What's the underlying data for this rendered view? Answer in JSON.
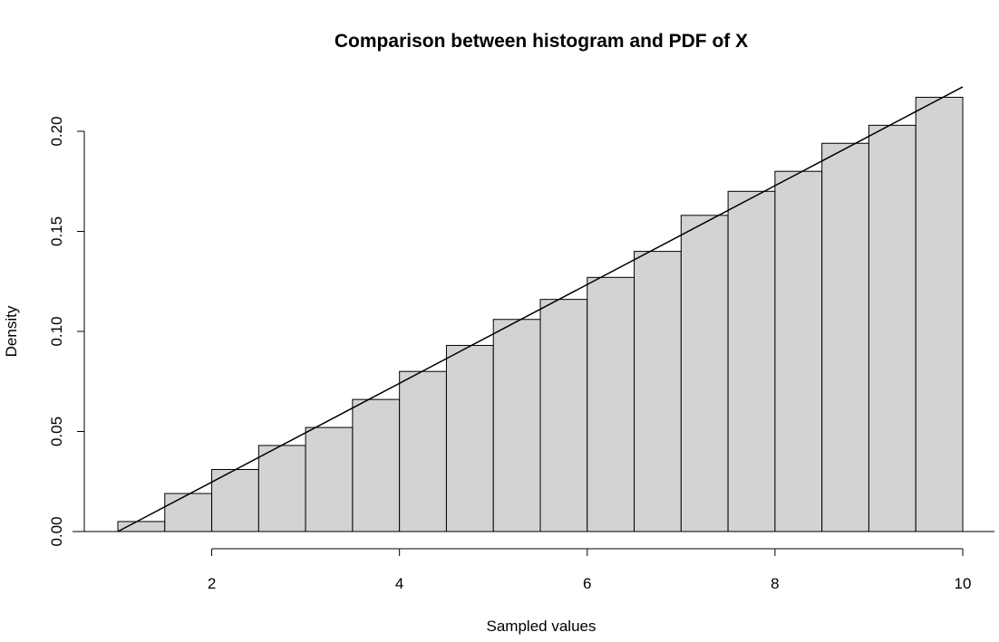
{
  "colors": {
    "bar_fill": "#d3d3d3",
    "bar_stroke": "#000000",
    "line": "#000000",
    "axis": "#000000",
    "background": "#ffffff"
  },
  "chart_data": {
    "type": "bar",
    "title": "Comparison between histogram and PDF of X",
    "xlabel": "Sampled values",
    "ylabel": "Density",
    "xlim": [
      1,
      10
    ],
    "ylim": [
      0,
      0.22
    ],
    "x_axis_ticks": [
      2,
      4,
      6,
      8,
      10
    ],
    "x_tick_labels": [
      "2",
      "4",
      "6",
      "8",
      "10"
    ],
    "y_axis_ticks": [
      0,
      0.05,
      0.1,
      0.15,
      0.2
    ],
    "y_tick_labels": [
      "0.00",
      "0.05",
      "0.10",
      "0.15",
      "0.20"
    ],
    "grid": false,
    "bins": [
      {
        "start": 1.0,
        "end": 1.5,
        "density": 0.005
      },
      {
        "start": 1.5,
        "end": 2.0,
        "density": 0.019
      },
      {
        "start": 2.0,
        "end": 2.5,
        "density": 0.031
      },
      {
        "start": 2.5,
        "end": 3.0,
        "density": 0.043
      },
      {
        "start": 3.0,
        "end": 3.5,
        "density": 0.052
      },
      {
        "start": 3.5,
        "end": 4.0,
        "density": 0.066
      },
      {
        "start": 4.0,
        "end": 4.5,
        "density": 0.08
      },
      {
        "start": 4.5,
        "end": 5.0,
        "density": 0.093
      },
      {
        "start": 5.0,
        "end": 5.5,
        "density": 0.106
      },
      {
        "start": 5.5,
        "end": 6.0,
        "density": 0.116
      },
      {
        "start": 6.0,
        "end": 6.5,
        "density": 0.127
      },
      {
        "start": 6.5,
        "end": 7.0,
        "density": 0.14
      },
      {
        "start": 7.0,
        "end": 7.5,
        "density": 0.158
      },
      {
        "start": 7.5,
        "end": 8.0,
        "density": 0.17
      },
      {
        "start": 8.0,
        "end": 8.5,
        "density": 0.18
      },
      {
        "start": 8.5,
        "end": 9.0,
        "density": 0.194
      },
      {
        "start": 9.0,
        "end": 9.5,
        "density": 0.203
      },
      {
        "start": 9.5,
        "end": 10.0,
        "density": 0.217
      }
    ],
    "pdf_line": {
      "x": [
        1,
        10
      ],
      "y": [
        0,
        0.2222
      ]
    }
  }
}
